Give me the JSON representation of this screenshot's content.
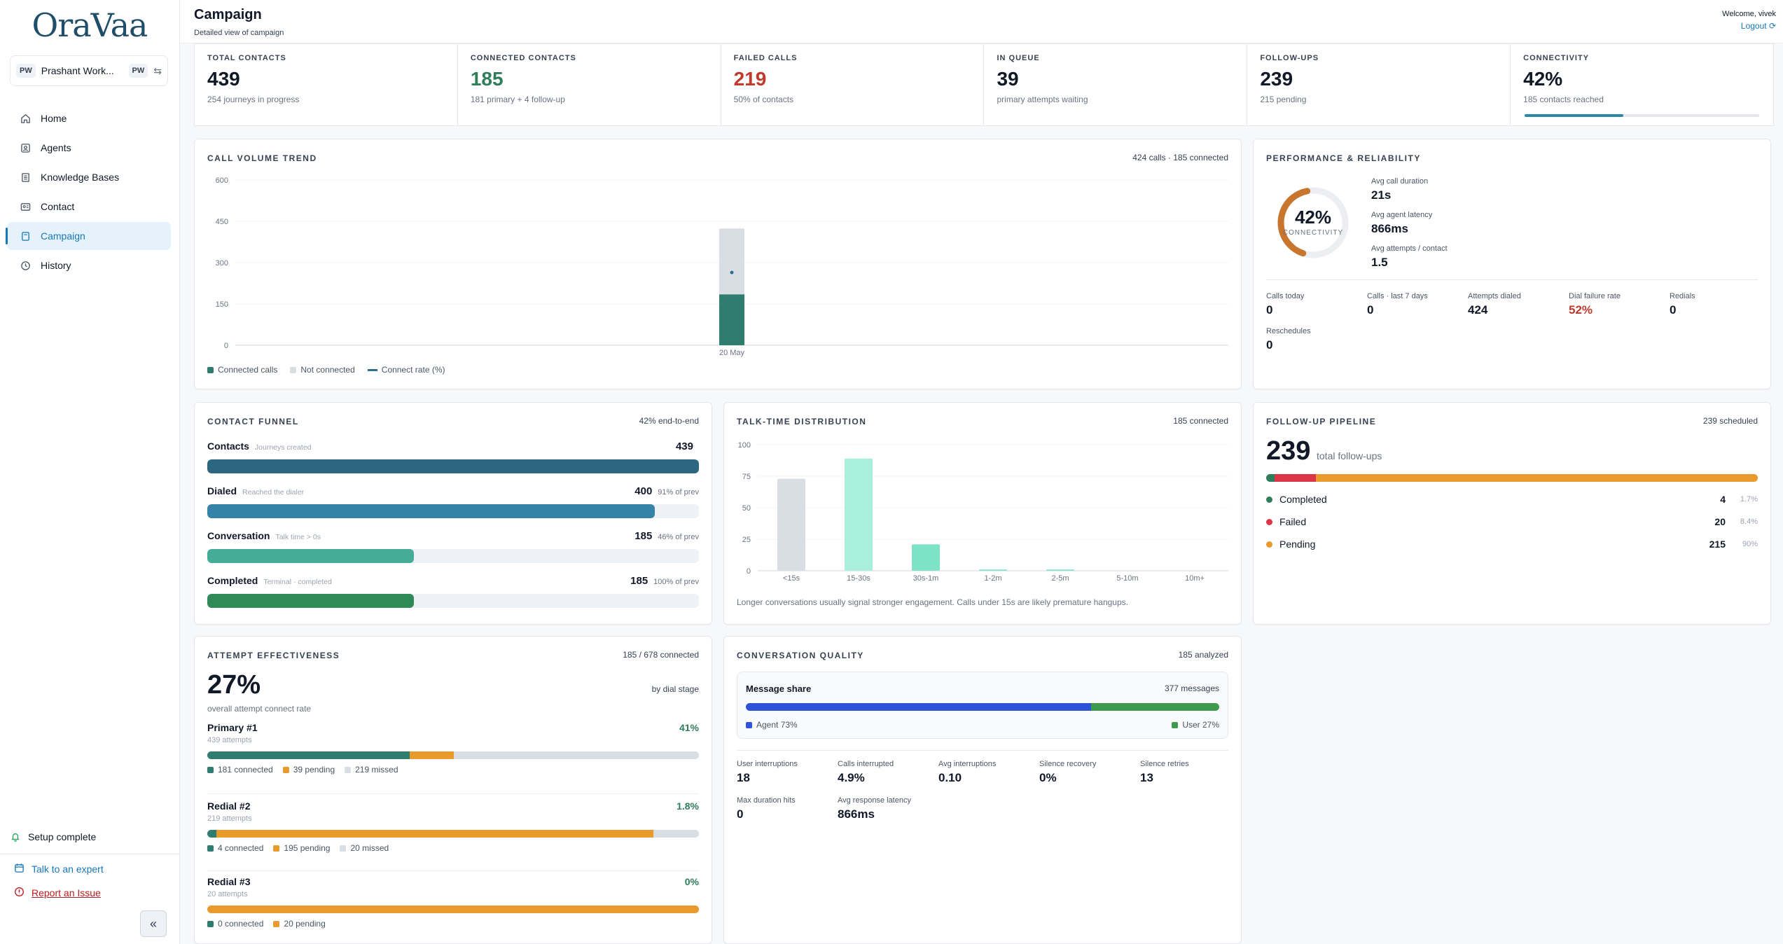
{
  "sidebar": {
    "logo": "OraVaa",
    "workspace": {
      "badge_left": "PW",
      "name": "Prashant Work...",
      "badge_right": "PW"
    },
    "items": [
      {
        "label": "Home"
      },
      {
        "label": "Agents"
      },
      {
        "label": "Knowledge Bases"
      },
      {
        "label": "Contact"
      },
      {
        "label": "Campaign"
      },
      {
        "label": "History"
      }
    ],
    "setup": "Setup complete",
    "talk": "Talk to an expert",
    "report": "Report an Issue"
  },
  "header": {
    "title": "Campaign",
    "subtitle": "Detailed view of campaign",
    "welcome": "Welcome, vivek",
    "logout": "Logout"
  },
  "kpis": [
    {
      "label": "TOTAL CONTACTS",
      "value": "439",
      "sub": "254 journeys in progress"
    },
    {
      "label": "CONNECTED CONTACTS",
      "value": "185",
      "sub": "181 primary + 4 follow-up"
    },
    {
      "label": "FAILED CALLS",
      "value": "219",
      "sub": "50% of contacts"
    },
    {
      "label": "IN QUEUE",
      "value": "39",
      "sub": "primary attempts waiting"
    },
    {
      "label": "FOLLOW-UPS",
      "value": "239",
      "sub": "215 pending"
    },
    {
      "label": "CONNECTIVITY",
      "value": "42%",
      "sub": "185 contacts reached",
      "progress": 0.42
    }
  ],
  "trend": {
    "title": "CALL VOLUME TREND",
    "summary": "424 calls · 185 connected",
    "legend": [
      "Connected calls",
      "Not connected",
      "Connect rate (%)"
    ]
  },
  "chart_data": [
    {
      "type": "bar",
      "title": "CALL VOLUME TREND",
      "categories": [
        "20 May"
      ],
      "series": [
        {
          "name": "Connected calls",
          "values": [
            185
          ]
        },
        {
          "name": "Not connected",
          "values": [
            239
          ]
        },
        {
          "name": "Connect rate (%)",
          "values": [
            44
          ]
        }
      ],
      "ylim": [
        0,
        600
      ],
      "yticks": [
        "0",
        "150",
        "300",
        "450",
        "600"
      ],
      "stacked": true
    },
    {
      "type": "bar",
      "title": "TALK-TIME DISTRIBUTION",
      "categories": [
        "<15s",
        "15-30s",
        "30s-1m",
        "1-2m",
        "2-5m",
        "5-10m",
        "10m+"
      ],
      "values": [
        73,
        89,
        21,
        1,
        1,
        0,
        0
      ],
      "ylim": [
        0,
        100
      ],
      "yticks": [
        "0",
        "25",
        "50",
        "75",
        "100"
      ]
    }
  ],
  "performance": {
    "title": "PERFORMANCE & RELIABILITY",
    "ring_value": "42%",
    "ring_fraction": 0.42,
    "ring_label": "CONNECTIVITY",
    "stats": [
      {
        "label": "Avg call duration",
        "value": "21s"
      },
      {
        "label": "Avg agent latency",
        "value": "866ms"
      },
      {
        "label": "Avg attempts / contact",
        "value": "1.5"
      }
    ],
    "mini": [
      {
        "label": "Calls today",
        "value": "0"
      },
      {
        "label": "Calls · last 7 days",
        "value": "0"
      },
      {
        "label": "Attempts dialed",
        "value": "424"
      },
      {
        "label": "Dial failure rate",
        "value": "52%"
      },
      {
        "label": "Redials",
        "value": "0"
      },
      {
        "label": "Reschedules",
        "value": "0"
      }
    ]
  },
  "funnel": {
    "title": "CONTACT FUNNEL",
    "summary": "42% end-to-end",
    "rows": [
      {
        "name": "Contacts",
        "desc": "Journeys created",
        "value": "439",
        "pct": "",
        "fraction": 1.0
      },
      {
        "name": "Dialed",
        "desc": "Reached the dialer",
        "value": "400",
        "pct": "91% of prev",
        "fraction": 0.91
      },
      {
        "name": "Conversation",
        "desc": "Talk time > 0s",
        "value": "185",
        "pct": "46% of prev",
        "fraction": 0.42
      },
      {
        "name": "Completed",
        "desc": "Terminal · completed",
        "value": "185",
        "pct": "100% of prev",
        "fraction": 0.42
      }
    ]
  },
  "talktime": {
    "title": "TALK-TIME DISTRIBUTION",
    "summary": "185 connected",
    "note": "Longer conversations usually signal stronger engagement. Calls under 15s are likely premature hangups."
  },
  "followup": {
    "title": "FOLLOW-UP PIPELINE",
    "summary": "239 scheduled",
    "total": "239",
    "total_label": "total follow-ups",
    "rows": [
      {
        "label": "Completed",
        "value": "4",
        "pct": "1.7%",
        "fraction": 0.017,
        "color": "#2e7d5b"
      },
      {
        "label": "Failed",
        "value": "20",
        "pct": "8.4%",
        "fraction": 0.084,
        "color": "#dc3545"
      },
      {
        "label": "Pending",
        "value": "215",
        "pct": "90%",
        "fraction": 0.9,
        "color": "#e89a2c"
      }
    ]
  },
  "attempts": {
    "title": "ATTEMPT EFFECTIVENESS",
    "summary": "185 / 678 connected",
    "rate": "27%",
    "rate_label": "overall attempt connect rate",
    "stage_label": "by dial stage",
    "stages": [
      {
        "name": "Primary #1",
        "rate": "41%",
        "count": "439 attempts",
        "connected": "181 connected",
        "pending": "39 pending",
        "missed": "219 missed",
        "connected_frac": 0.412,
        "pending_frac": 0.089,
        "missed_frac": 0.499
      },
      {
        "name": "Redial #2",
        "rate": "1.8%",
        "count": "219 attempts",
        "connected": "4 connected",
        "pending": "195 pending",
        "missed": "20 missed",
        "connected_frac": 0.018,
        "pending_frac": 0.89,
        "missed_frac": 0.092
      },
      {
        "name": "Redial #3",
        "rate": "0%",
        "count": "20 attempts",
        "connected": "0 connected",
        "pending": "20 pending",
        "missed": "",
        "connected_frac": 0.0,
        "pending_frac": 1.0,
        "missed_frac": 0.0
      }
    ]
  },
  "quality": {
    "title": "CONVERSATION QUALITY",
    "summary": "185 analyzed",
    "msg_title": "Message share",
    "msg_count": "377 messages",
    "agent_label": "Agent 73%",
    "user_label": "User 27%",
    "agent_frac": 0.73,
    "stats": [
      {
        "label": "User interruptions",
        "value": "18"
      },
      {
        "label": "Calls interrupted",
        "value": "4.9%"
      },
      {
        "label": "Avg interruptions",
        "value": "0.10"
      },
      {
        "label": "Silence recovery",
        "value": "0%"
      },
      {
        "label": "Silence retries",
        "value": "13"
      },
      {
        "label": "Max duration hits",
        "value": "0"
      },
      {
        "label": "Avg response latency",
        "value": "866ms"
      }
    ]
  },
  "colors": {
    "accent": "#1677b8",
    "connected": "#2e7d5b",
    "not_connected": "#d9dee5",
    "pending": "#e89a2c",
    "failed": "#dc3545",
    "talk_bar": "#a8f0dc"
  }
}
